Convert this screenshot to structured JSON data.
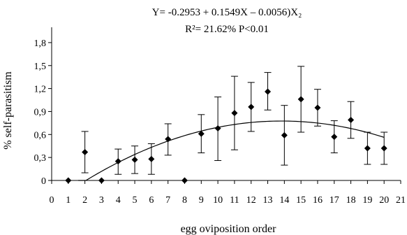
{
  "chart_data": {
    "type": "scatter",
    "title_lines": [
      "Y= -0.2953 + 0.1549X – 0.0056)X₂",
      "R²= 21.62% P<0.01"
    ],
    "xlabel": "egg oviposition order",
    "ylabel": "% self-parasitism",
    "xlim": [
      0,
      21
    ],
    "ylim": [
      0,
      2.0
    ],
    "x_ticks": [
      0,
      1,
      2,
      3,
      4,
      5,
      6,
      7,
      8,
      9,
      10,
      11,
      12,
      13,
      14,
      15,
      16,
      17,
      18,
      19,
      20,
      21
    ],
    "x_tick_labels": [
      "0",
      "1",
      "2",
      "3",
      "4",
      "5",
      "6",
      "7",
      "8",
      "9",
      "10",
      "11",
      "12",
      "13",
      "14",
      "15",
      "16",
      "17",
      "18",
      "19",
      "20",
      "21"
    ],
    "y_ticks": [
      0,
      0.3,
      0.6,
      0.9,
      1.2,
      1.5,
      1.8
    ],
    "y_tick_labels": [
      "0",
      "0,3",
      "0,6",
      "0,9",
      "1,2",
      "1,5",
      "1,8"
    ],
    "grid": false,
    "marker": "diamond",
    "points": [
      {
        "x": 1,
        "y": 0,
        "lo": null,
        "hi": null
      },
      {
        "x": 2,
        "y": 0.37,
        "lo": 0.1,
        "hi": 0.64
      },
      {
        "x": 3,
        "y": 0,
        "lo": null,
        "hi": null
      },
      {
        "x": 4,
        "y": 0.25,
        "lo": 0.08,
        "hi": 0.41
      },
      {
        "x": 5,
        "y": 0.27,
        "lo": 0.09,
        "hi": 0.45
      },
      {
        "x": 6,
        "y": 0.28,
        "lo": 0.08,
        "hi": 0.48
      },
      {
        "x": 7,
        "y": 0.54,
        "lo": 0.33,
        "hi": 0.74
      },
      {
        "x": 8,
        "y": 0,
        "lo": null,
        "hi": null
      },
      {
        "x": 9,
        "y": 0.61,
        "lo": 0.36,
        "hi": 0.86
      },
      {
        "x": 10,
        "y": 0.68,
        "lo": 0.26,
        "hi": 1.09
      },
      {
        "x": 11,
        "y": 0.88,
        "lo": 0.4,
        "hi": 1.36
      },
      {
        "x": 12,
        "y": 0.96,
        "lo": 0.64,
        "hi": 1.28
      },
      {
        "x": 13,
        "y": 1.16,
        "lo": 0.92,
        "hi": 1.41
      },
      {
        "x": 14,
        "y": 0.59,
        "lo": 0.2,
        "hi": 0.98
      },
      {
        "x": 15,
        "y": 1.06,
        "lo": 0.63,
        "hi": 1.49
      },
      {
        "x": 16,
        "y": 0.95,
        "lo": 0.71,
        "hi": 1.19
      },
      {
        "x": 17,
        "y": 0.57,
        "lo": 0.36,
        "hi": 0.78
      },
      {
        "x": 18,
        "y": 0.79,
        "lo": 0.55,
        "hi": 1.03
      },
      {
        "x": 19,
        "y": 0.42,
        "lo": 0.21,
        "hi": 0.63
      },
      {
        "x": 20,
        "y": 0.42,
        "lo": 0.21,
        "hi": 0.63
      }
    ],
    "fit_curve": {
      "type": "quadratic",
      "coefficients": [
        -0.2953,
        0.1549,
        -0.0056
      ],
      "x_range": [
        1.6,
        20
      ]
    }
  }
}
